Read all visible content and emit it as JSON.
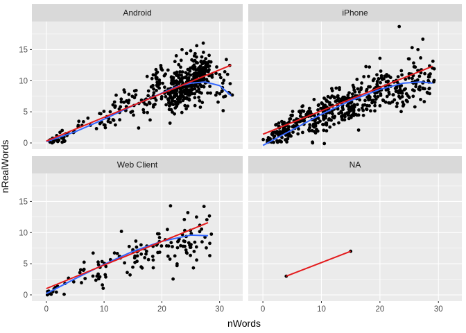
{
  "chart_data": {
    "type": "scatter",
    "xlabel": "nWords",
    "ylabel": "nRealWords",
    "x_ticks": [
      0,
      10,
      20,
      30
    ],
    "y_ticks": [
      0,
      5,
      10,
      15
    ],
    "xlim": [
      -2.5,
      34
    ],
    "ylim": [
      -1,
      19.5
    ],
    "grid": true,
    "legend": "none",
    "colors": {
      "panel_bg": "#ebebeb",
      "strip_bg": "#d9d9d9",
      "grid": "#ffffff",
      "points": "#000000",
      "smooth_line": "#3366ff",
      "linear_fit": "#e31a1c"
    },
    "panels": [
      {
        "label": "Android",
        "smooth": [
          [
            0,
            0.2
          ],
          [
            5,
            1.8
          ],
          [
            10,
            3.8
          ],
          [
            15,
            6.0
          ],
          [
            20,
            8.0
          ],
          [
            22.5,
            9.0
          ],
          [
            25,
            9.6
          ],
          [
            27.5,
            9.8
          ],
          [
            30,
            9.2
          ],
          [
            32,
            7.6
          ]
        ],
        "linear": [
          [
            0,
            0.3
          ],
          [
            32,
            12.5
          ]
        ],
        "clusters": [
          {
            "x": [
              0,
              2
            ],
            "y": [
              0,
              0.6
            ],
            "n": 15,
            "spread": 0.3
          },
          {
            "x": [
              2,
              8
            ],
            "y": [
              0.5,
              4
            ],
            "n": 22,
            "spread": 0.9
          },
          {
            "x": [
              8,
              16
            ],
            "y": [
              2.5,
              8
            ],
            "n": 50,
            "spread": 1.5
          },
          {
            "x": [
              16,
              21
            ],
            "y": [
              5,
              11
            ],
            "n": 60,
            "spread": 2.0
          },
          {
            "x": [
              21,
              28
            ],
            "y": [
              7.5,
              11.5
            ],
            "n": 320,
            "spread": 2.2
          },
          {
            "x": [
              28,
              32
            ],
            "y": [
              8,
              10
            ],
            "n": 25,
            "spread": 2.0
          }
        ],
        "points": [
          [
            1,
            0
          ],
          [
            3,
            0.5
          ],
          [
            23.5,
            15
          ],
          [
            25,
            14.8
          ],
          [
            22.5,
            14
          ],
          [
            26,
            13.8
          ],
          [
            24,
            6
          ],
          [
            27,
            6.5
          ],
          [
            31,
            7.5
          ],
          [
            32.2,
            7.7
          ],
          [
            29.5,
            12.2
          ],
          [
            28.5,
            13
          ]
        ]
      },
      {
        "label": "iPhone",
        "smooth": [
          [
            0,
            -0.4
          ],
          [
            5,
            2.1
          ],
          [
            10,
            4.6
          ],
          [
            15,
            6.8
          ],
          [
            20,
            8.6
          ],
          [
            24,
            9.6
          ],
          [
            27,
            9.8
          ],
          [
            29,
            9.6
          ]
        ],
        "linear": [
          [
            0,
            1.4
          ],
          [
            29,
            12.3
          ]
        ],
        "clusters": [
          {
            "x": [
              0,
              2
            ],
            "y": [
              -0.5,
              1.5
            ],
            "n": 20,
            "spread": 0.6
          },
          {
            "x": [
              2,
              8
            ],
            "y": [
              1,
              4.5
            ],
            "n": 110,
            "spread": 1.3
          },
          {
            "x": [
              8,
              14
            ],
            "y": [
              3.5,
              7
            ],
            "n": 130,
            "spread": 1.7
          },
          {
            "x": [
              14,
              21
            ],
            "y": [
              5.5,
              9.5
            ],
            "n": 140,
            "spread": 2.0
          },
          {
            "x": [
              21,
              29
            ],
            "y": [
              7.5,
              10.5
            ],
            "n": 110,
            "spread": 2.2
          }
        ],
        "points": [
          [
            23.3,
            18.7
          ],
          [
            25.5,
            15.3
          ],
          [
            26.5,
            15
          ],
          [
            8.5,
            0
          ],
          [
            10.5,
            -0.1
          ],
          [
            25,
            13.5
          ],
          [
            20,
            13.6
          ],
          [
            29.2,
            9.8
          ]
        ]
      },
      {
        "label": "Web Client",
        "smooth": [
          [
            0,
            0.2
          ],
          [
            5,
            2.6
          ],
          [
            10,
            4.9
          ],
          [
            15,
            7.0
          ],
          [
            20,
            8.6
          ],
          [
            25,
            9.6
          ],
          [
            28,
            9.5
          ]
        ],
        "linear": [
          [
            0,
            1.0
          ],
          [
            28,
            11.6
          ]
        ],
        "clusters": [
          {
            "x": [
              0,
              2
            ],
            "y": [
              0,
              1
            ],
            "n": 10,
            "spread": 0.4
          },
          {
            "x": [
              2,
              8
            ],
            "y": [
              1,
              4
            ],
            "n": 12,
            "spread": 0.9
          },
          {
            "x": [
              8,
              15
            ],
            "y": [
              3,
              7
            ],
            "n": 25,
            "spread": 1.5
          },
          {
            "x": [
              15,
              22
            ],
            "y": [
              5.5,
              9.5
            ],
            "n": 40,
            "spread": 1.9
          },
          {
            "x": [
              22,
              28
            ],
            "y": [
              7.5,
              10.5
            ],
            "n": 45,
            "spread": 2.2
          }
        ],
        "points": [
          [
            21.5,
            14.3
          ],
          [
            27.3,
            14.2
          ],
          [
            24.5,
            13.2
          ],
          [
            26,
            12.5
          ],
          [
            13,
            10.2
          ],
          [
            14.5,
            3.2
          ],
          [
            18.5,
            5.6
          ],
          [
            28.3,
            6.3
          ],
          [
            9.7,
            1.6
          ]
        ]
      },
      {
        "label": "NA",
        "smooth": [],
        "linear": [
          [
            4,
            3
          ],
          [
            15,
            7
          ]
        ],
        "clusters": [],
        "points": [
          [
            4,
            3
          ],
          [
            15,
            7
          ]
        ]
      }
    ]
  }
}
